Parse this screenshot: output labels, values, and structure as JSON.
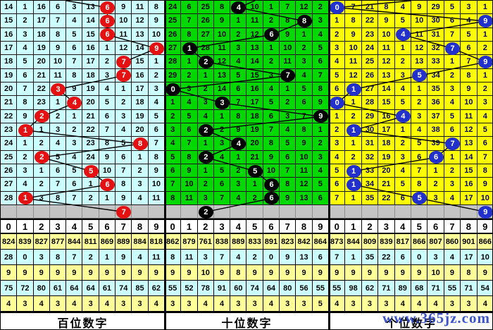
{
  "watermark": {
    "text": "www.365jz.com",
    "color": "#2743C6"
  },
  "digit_headers": [
    "0",
    "1",
    "2",
    "3",
    "4",
    "5",
    "6",
    "7",
    "8",
    "9"
  ],
  "colors": {
    "hundreds_bg": "#CCFFFF",
    "tens_bg": "#00D800",
    "units_bg": "#FFFF00",
    "red_ball": "#E31111",
    "black_ball": "#000000",
    "blue_ball": "#2230CC",
    "pending_row_bg": "#C4C4C4",
    "stat_yellow": "#FFFF99",
    "stat_cyan": "#CCFFFF"
  },
  "chart_data": {
    "type": "table",
    "description": "Lottery digit trend chart: per-panel miss-count grid over 15 periods, drawn digit marked by colored ball, plus summary statistic rows per digit 0-9",
    "panels": [
      "百位数字",
      "十位数字",
      "个位数字"
    ],
    "drawn_digit_series": {
      "百位数字": [
        6,
        6,
        6,
        9,
        7,
        7,
        3,
        4,
        2,
        1,
        8,
        2,
        5,
        6,
        1
      ],
      "十位数字": [
        4,
        8,
        6,
        1,
        2,
        7,
        0,
        3,
        9,
        2,
        4,
        2,
        5,
        6,
        6
      ],
      "个位数字": [
        0,
        9,
        4,
        7,
        9,
        5,
        1,
        0,
        4,
        1,
        7,
        6,
        1,
        1,
        5
      ]
    },
    "next_period_marks": {
      "百位数字": 7,
      "十位数字": 2,
      "个位数字": 9
    }
  },
  "panels": [
    {
      "key": "hundreds",
      "title": "百位数字",
      "cell_bg": "#CCFFFF",
      "text_color": "#000000",
      "ball_color": "#E31111",
      "ball_text_color": "#FFFFFF",
      "rows": [
        [
          14,
          1,
          16,
          6,
          3,
          13,
          6,
          9,
          11,
          8
        ],
        [
          15,
          2,
          17,
          7,
          4,
          14,
          6,
          10,
          12,
          9
        ],
        [
          16,
          3,
          18,
          8,
          5,
          15,
          6,
          11,
          13,
          10
        ],
        [
          17,
          4,
          19,
          9,
          6,
          16,
          1,
          12,
          14,
          9
        ],
        [
          18,
          5,
          20,
          10,
          7,
          17,
          2,
          7,
          15,
          1
        ],
        [
          19,
          6,
          21,
          11,
          8,
          18,
          3,
          7,
          16,
          2
        ],
        [
          20,
          7,
          22,
          3,
          9,
          19,
          4,
          1,
          17,
          3
        ],
        [
          21,
          8,
          23,
          1,
          4,
          20,
          5,
          2,
          18,
          4
        ],
        [
          22,
          9,
          2,
          2,
          1,
          21,
          6,
          3,
          19,
          5
        ],
        [
          23,
          1,
          1,
          3,
          2,
          22,
          7,
          4,
          20,
          6
        ],
        [
          24,
          1,
          2,
          4,
          3,
          23,
          8,
          5,
          8,
          7
        ],
        [
          25,
          2,
          2,
          5,
          4,
          24,
          9,
          6,
          1,
          8
        ],
        [
          26,
          3,
          1,
          6,
          5,
          5,
          10,
          7,
          2,
          9
        ],
        [
          27,
          4,
          2,
          7,
          6,
          1,
          6,
          8,
          3,
          10
        ],
        [
          28,
          1,
          3,
          8,
          7,
          2,
          1,
          9,
          4,
          11
        ]
      ],
      "ball_cols": [
        6,
        6,
        6,
        9,
        7,
        7,
        3,
        4,
        2,
        1,
        8,
        2,
        5,
        6,
        1
      ],
      "next_row_ball_col": 7,
      "stats_rows": [
        {
          "bg": "#FFFF99",
          "values": [
            824,
            839,
            827,
            877,
            844,
            811,
            869,
            889,
            884,
            818
          ]
        },
        {
          "bg": "#CCFFFF",
          "values": [
            28,
            0,
            3,
            8,
            7,
            2,
            1,
            9,
            4,
            11
          ]
        },
        {
          "bg": "#FFFF99",
          "values": [
            9,
            9,
            9,
            9,
            9,
            9,
            9,
            9,
            9,
            9
          ]
        },
        {
          "bg": "#CCFFFF",
          "values": [
            75,
            72,
            80,
            61,
            64,
            64,
            61,
            74,
            85,
            62
          ]
        },
        {
          "bg": "#FFFF99",
          "values": [
            4,
            3,
            4,
            3,
            4,
            3,
            4,
            3,
            3,
            4
          ]
        }
      ]
    },
    {
      "key": "tens",
      "title": "十位数字",
      "cell_bg": "#00D800",
      "text_color": "#000000",
      "ball_color": "#000000",
      "ball_text_color": "#FFFFFF",
      "rows": [
        [
          24,
          6,
          25,
          8,
          4,
          10,
          1,
          7,
          12,
          2
        ],
        [
          25,
          7,
          26,
          9,
          1,
          11,
          2,
          8,
          8,
          3
        ],
        [
          26,
          8,
          27,
          10,
          2,
          12,
          6,
          9,
          1,
          4
        ],
        [
          27,
          1,
          28,
          11,
          3,
          13,
          1,
          10,
          2,
          5
        ],
        [
          28,
          1,
          2,
          12,
          4,
          14,
          2,
          11,
          3,
          6
        ],
        [
          29,
          2,
          1,
          13,
          5,
          15,
          3,
          7,
          4,
          7
        ],
        [
          0,
          3,
          2,
          14,
          6,
          16,
          4,
          1,
          5,
          8
        ],
        [
          1,
          4,
          3,
          3,
          7,
          17,
          5,
          2,
          6,
          9
        ],
        [
          2,
          5,
          4,
          1,
          8,
          18,
          6,
          3,
          7,
          9
        ],
        [
          3,
          6,
          2,
          2,
          9,
          19,
          7,
          4,
          8,
          1
        ],
        [
          4,
          7,
          1,
          3,
          4,
          20,
          8,
          5,
          9,
          2
        ],
        [
          5,
          8,
          2,
          4,
          1,
          21,
          9,
          6,
          10,
          3
        ],
        [
          6,
          9,
          1,
          5,
          2,
          5,
          10,
          7,
          11,
          4
        ],
        [
          7,
          10,
          2,
          6,
          3,
          1,
          6,
          8,
          12,
          5
        ],
        [
          8,
          11,
          3,
          7,
          4,
          2,
          6,
          9,
          13,
          6
        ]
      ],
      "ball_cols": [
        4,
        8,
        6,
        1,
        2,
        7,
        0,
        3,
        9,
        2,
        4,
        2,
        5,
        6,
        6
      ],
      "next_row_ball_col": 2,
      "stats_rows": [
        {
          "bg": "#FFFF99",
          "values": [
            862,
            879,
            761,
            838,
            889,
            833,
            891,
            823,
            842,
            864
          ]
        },
        {
          "bg": "#CCFFFF",
          "values": [
            8,
            11,
            3,
            7,
            4,
            2,
            0,
            9,
            13,
            6
          ]
        },
        {
          "bg": "#FFFF99",
          "values": [
            9,
            9,
            10,
            9,
            8,
            9,
            9,
            9,
            9,
            9
          ]
        },
        {
          "bg": "#CCFFFF",
          "values": [
            55,
            52,
            78,
            91,
            60,
            74,
            64,
            80,
            56,
            55
          ]
        },
        {
          "bg": "#FFFF99",
          "values": [
            3,
            3,
            4,
            4,
            3,
            3,
            4,
            3,
            3,
            5
          ]
        }
      ]
    },
    {
      "key": "units",
      "title": "个位数字",
      "cell_bg": "#FFFF00",
      "text_color": "#000066",
      "ball_color": "#2230CC",
      "ball_text_color": "#FFFFFF",
      "rows": [
        [
          0,
          7,
          21,
          8,
          4,
          9,
          29,
          5,
          3,
          1
        ],
        [
          1,
          8,
          22,
          9,
          5,
          10,
          30,
          6,
          4,
          9
        ],
        [
          2,
          9,
          23,
          10,
          4,
          11,
          31,
          7,
          5,
          1
        ],
        [
          3,
          10,
          24,
          11,
          1,
          12,
          32,
          7,
          6,
          2
        ],
        [
          4,
          11,
          25,
          12,
          2,
          13,
          33,
          1,
          7,
          9
        ],
        [
          5,
          12,
          26,
          13,
          3,
          5,
          34,
          2,
          8,
          1
        ],
        [
          6,
          1,
          27,
          14,
          4,
          1,
          35,
          3,
          9,
          2
        ],
        [
          0,
          1,
          28,
          15,
          5,
          2,
          36,
          4,
          10,
          3
        ],
        [
          1,
          2,
          29,
          16,
          4,
          3,
          37,
          5,
          11,
          4
        ],
        [
          2,
          1,
          30,
          17,
          1,
          4,
          38,
          6,
          12,
          5
        ],
        [
          3,
          1,
          31,
          18,
          2,
          5,
          39,
          7,
          13,
          6
        ],
        [
          4,
          2,
          32,
          19,
          3,
          6,
          6,
          1,
          14,
          7
        ],
        [
          5,
          1,
          33,
          20,
          4,
          7,
          1,
          2,
          15,
          8
        ],
        [
          6,
          1,
          34,
          21,
          5,
          8,
          2,
          3,
          16,
          9
        ],
        [
          7,
          1,
          35,
          22,
          6,
          5,
          3,
          4,
          17,
          10
        ]
      ],
      "ball_cols": [
        0,
        9,
        4,
        7,
        9,
        5,
        1,
        0,
        4,
        1,
        7,
        6,
        1,
        1,
        5
      ],
      "next_row_ball_col": 9,
      "stats_rows": [
        {
          "bg": "#FFFF99",
          "values": [
            873,
            844,
            809,
            839,
            817,
            866,
            807,
            860,
            901,
            866
          ]
        },
        {
          "bg": "#CCFFFF",
          "values": [
            7,
            1,
            35,
            22,
            6,
            0,
            3,
            4,
            17,
            10
          ]
        },
        {
          "bg": "#FFFF99",
          "values": [
            9,
            9,
            9,
            9,
            9,
            9,
            10,
            9,
            8,
            9
          ]
        },
        {
          "bg": "#CCFFFF",
          "values": [
            55,
            98,
            62,
            71,
            89,
            68,
            71,
            55,
            71,
            54
          ]
        },
        {
          "bg": "#FFFF99",
          "values": [
            4,
            3,
            3,
            3,
            4,
            4,
            4,
            3,
            3,
            4
          ]
        }
      ]
    }
  ]
}
